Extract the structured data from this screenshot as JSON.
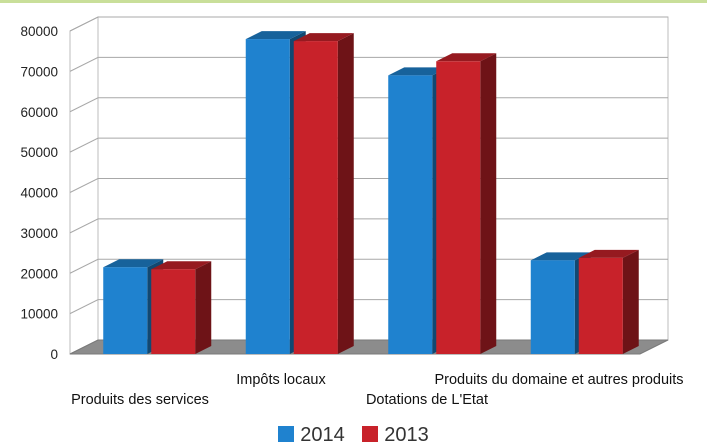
{
  "chart_data": {
    "type": "bar",
    "title": "",
    "xlabel": "",
    "ylabel": "",
    "categories": [
      "Produits des services",
      "Impôts locaux",
      "Dotations de L'Etat",
      "Produits du domaine et autres produits"
    ],
    "series": [
      {
        "name": "2014",
        "color": "#1f82cf",
        "values": [
          21500,
          78000,
          69000,
          23200
        ]
      },
      {
        "name": "2013",
        "color": "#c8222a",
        "values": [
          21000,
          77500,
          72500,
          23800
        ]
      }
    ],
    "ylim": [
      0,
      80000
    ],
    "yticks": [
      "0",
      "10000",
      "20000",
      "30000",
      "40000",
      "50000",
      "60000",
      "70000",
      "80000"
    ],
    "grid": true,
    "legend_position": "bottom-center"
  }
}
